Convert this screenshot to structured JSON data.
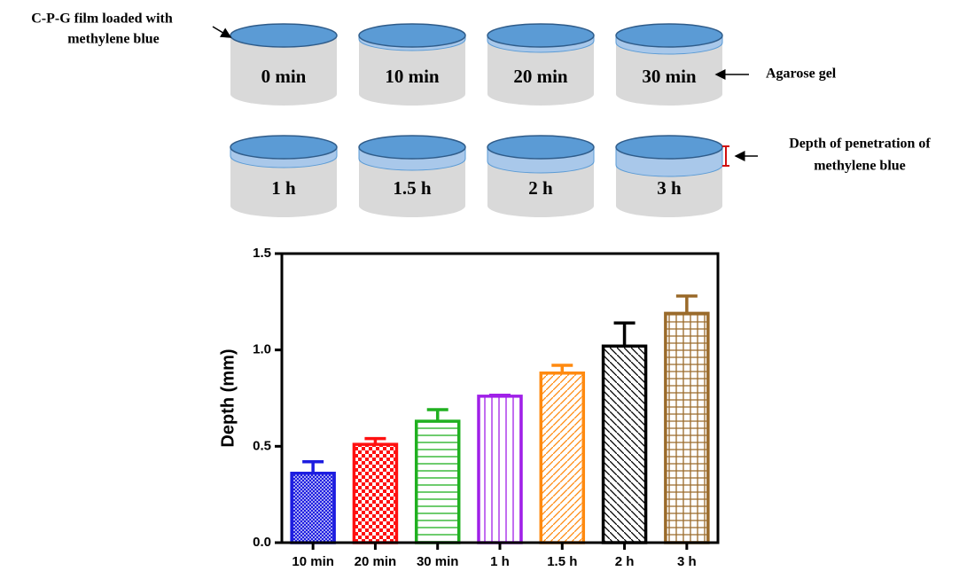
{
  "diagram": {
    "film_label": [
      "C-P-G film loaded with",
      "methylene blue"
    ],
    "gel_label": "Agarose gel",
    "depth_label": [
      "Depth of penetration of",
      "methylene blue"
    ],
    "cylinders": [
      "0 min",
      "10 min",
      "20 min",
      "30 min",
      "1 h",
      "1.5 h",
      "2 h",
      "3 h"
    ]
  },
  "chart_data": {
    "type": "bar",
    "y_label": "Depth (mm)",
    "categories": [
      "10 min",
      "20 min",
      "30 min",
      "1 h",
      "1.5 h",
      "2 h",
      "3 h"
    ],
    "values": [
      0.36,
      0.51,
      0.63,
      0.76,
      0.88,
      1.02,
      1.19
    ],
    "errors": [
      0.06,
      0.03,
      0.06,
      0.005,
      0.04,
      0.12,
      0.09
    ],
    "colors": [
      "#1c1ce0",
      "#ff1010",
      "#20b020",
      "#a020e8",
      "#ff8a10",
      "#000000",
      "#9a6a2a"
    ],
    "ylim": [
      0,
      1.5
    ],
    "yticks": [
      {
        "value": 0,
        "label": "0.0"
      },
      0.5,
      {
        "value": 1,
        "label": "1.0"
      },
      1.5
    ]
  }
}
